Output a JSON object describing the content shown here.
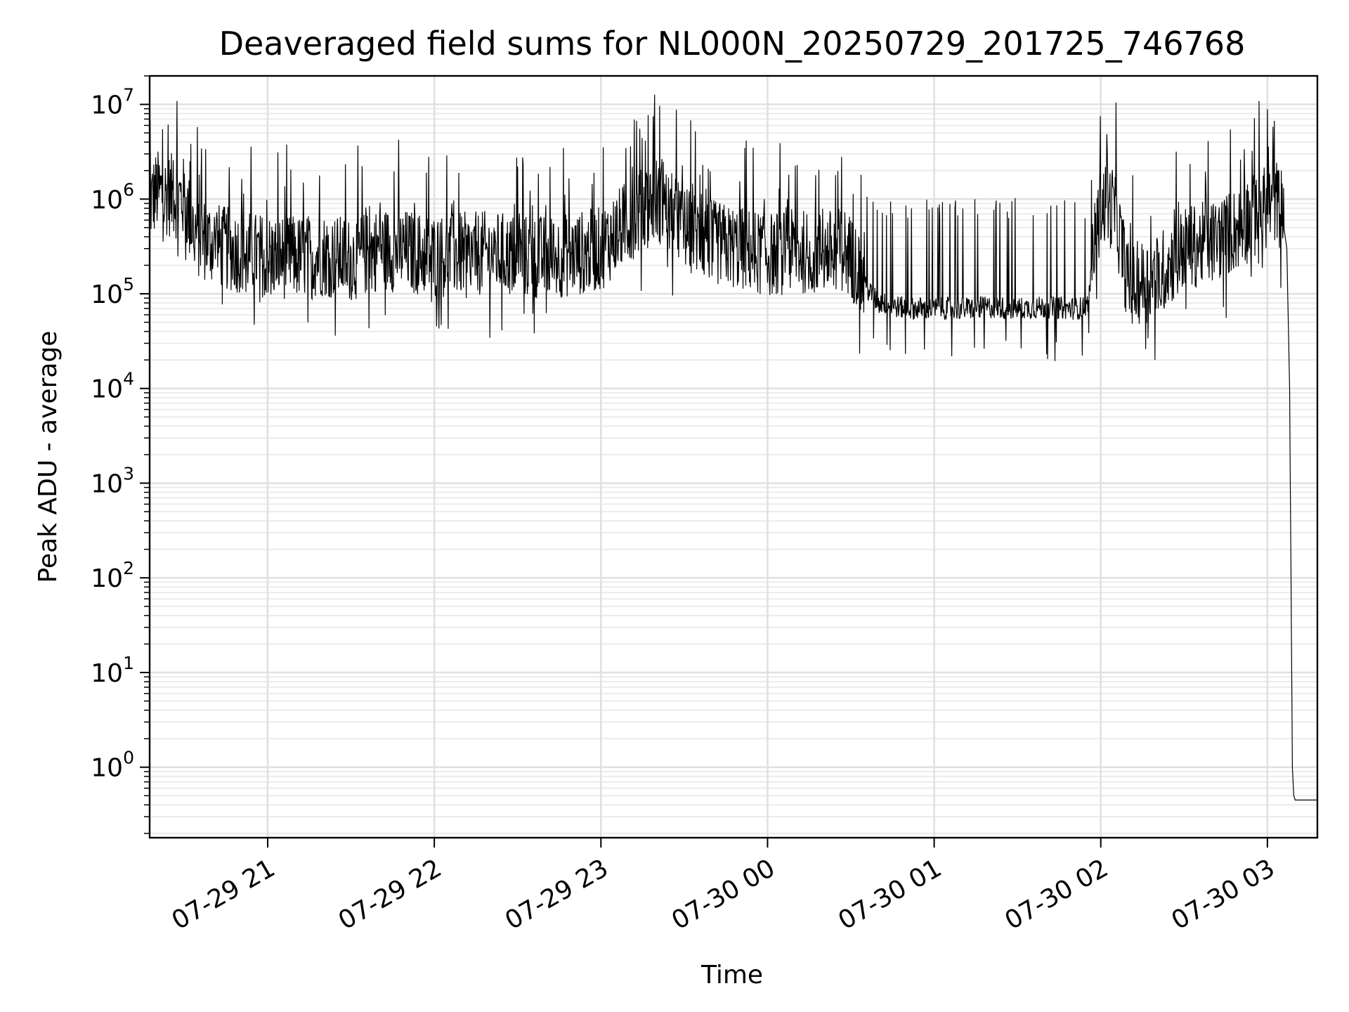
{
  "colors": {
    "line": "#000000",
    "grid_major": "#e0e0e0",
    "grid_minor": "#ebebeb",
    "axes": "#000000",
    "background": "#ffffff"
  },
  "chart_data": {
    "type": "line",
    "title": "Deaveraged field sums for NL000N_20250729_201725_746768",
    "xlabel": "Time",
    "ylabel": "Peak ADU - average",
    "y_scale": "log",
    "ylim": [
      0.18,
      20000000
    ],
    "xlim": [
      "07-29 20:17:30",
      "07-30 03:18:00"
    ],
    "grid": true,
    "legend": "none",
    "x_ticks": [
      {
        "t": "07-29 21:00",
        "label": "07-29 21"
      },
      {
        "t": "07-29 22:00",
        "label": "07-29 22"
      },
      {
        "t": "07-29 23:00",
        "label": "07-29 23"
      },
      {
        "t": "07-30 00:00",
        "label": "07-30 00"
      },
      {
        "t": "07-30 01:00",
        "label": "07-30 01"
      },
      {
        "t": "07-30 02:00",
        "label": "07-30 02"
      },
      {
        "t": "07-30 03:00",
        "label": "07-30 03"
      }
    ],
    "y_ticks": [
      {
        "value": 1,
        "base": "10",
        "exp": "0"
      },
      {
        "value": 10,
        "base": "10",
        "exp": "1"
      },
      {
        "value": 100,
        "base": "10",
        "exp": "2"
      },
      {
        "value": 1000,
        "base": "10",
        "exp": "3"
      },
      {
        "value": 10000,
        "base": "10",
        "exp": "4"
      },
      {
        "value": 100000,
        "base": "10",
        "exp": "5"
      },
      {
        "value": 1000000,
        "base": "10",
        "exp": "6"
      },
      {
        "value": 10000000,
        "base": "10",
        "exp": "7"
      }
    ],
    "series": [
      {
        "x": [
          "07-29 20:17:30",
          "07-29 20:20",
          "07-29 20:25",
          "07-29 20:30",
          "07-29 20:32",
          "07-29 20:35",
          "07-29 20:40",
          "07-29 20:45",
          "07-29 20:50",
          "07-29 21:00",
          "07-29 21:10",
          "07-29 21:20",
          "07-29 21:30",
          "07-29 21:40",
          "07-29 21:50",
          "07-29 22:00",
          "07-29 22:10",
          "07-29 22:20",
          "07-29 22:30",
          "07-29 22:40",
          "07-29 22:50",
          "07-29 23:00",
          "07-29 23:10",
          "07-29 23:20",
          "07-29 23:30",
          "07-29 23:40",
          "07-29 23:50",
          "07-30 00:00",
          "07-30 00:10",
          "07-30 00:20",
          "07-30 00:28",
          "07-30 00:32",
          "07-30 00:35",
          "07-30 00:40",
          "07-30 00:50",
          "07-30 01:00",
          "07-30 01:10",
          "07-30 01:20",
          "07-30 01:30",
          "07-30 01:40",
          "07-30 01:50",
          "07-30 01:55",
          "07-30 02:00",
          "07-30 02:05",
          "07-30 02:10",
          "07-30 02:20",
          "07-30 02:30",
          "07-30 02:40",
          "07-30 02:50",
          "07-30 03:00",
          "07-30 03:03",
          "07-30 03:05",
          "07-30 03:07",
          "07-30 03:08",
          "07-30 03:09",
          "07-30 03:09:30",
          "07-30 03:10",
          "07-30 03:18"
        ],
        "y": [
          900000,
          1200000,
          1100000,
          1000000,
          600000,
          400000,
          350000,
          300000,
          280000,
          250000,
          240000,
          260000,
          230000,
          300000,
          280000,
          250000,
          260000,
          270000,
          250000,
          240000,
          260000,
          300000,
          600000,
          1000000,
          500000,
          350000,
          300000,
          260000,
          280000,
          270000,
          300000,
          200000,
          120000,
          80000,
          70000,
          70000,
          70000,
          72000,
          70000,
          72000,
          70000,
          71000,
          900000,
          800000,
          120000,
          150000,
          300000,
          350000,
          500000,
          850000,
          950000,
          800000,
          300000,
          10000,
          1,
          0.5,
          0.45,
          0.45
        ]
      }
    ]
  }
}
